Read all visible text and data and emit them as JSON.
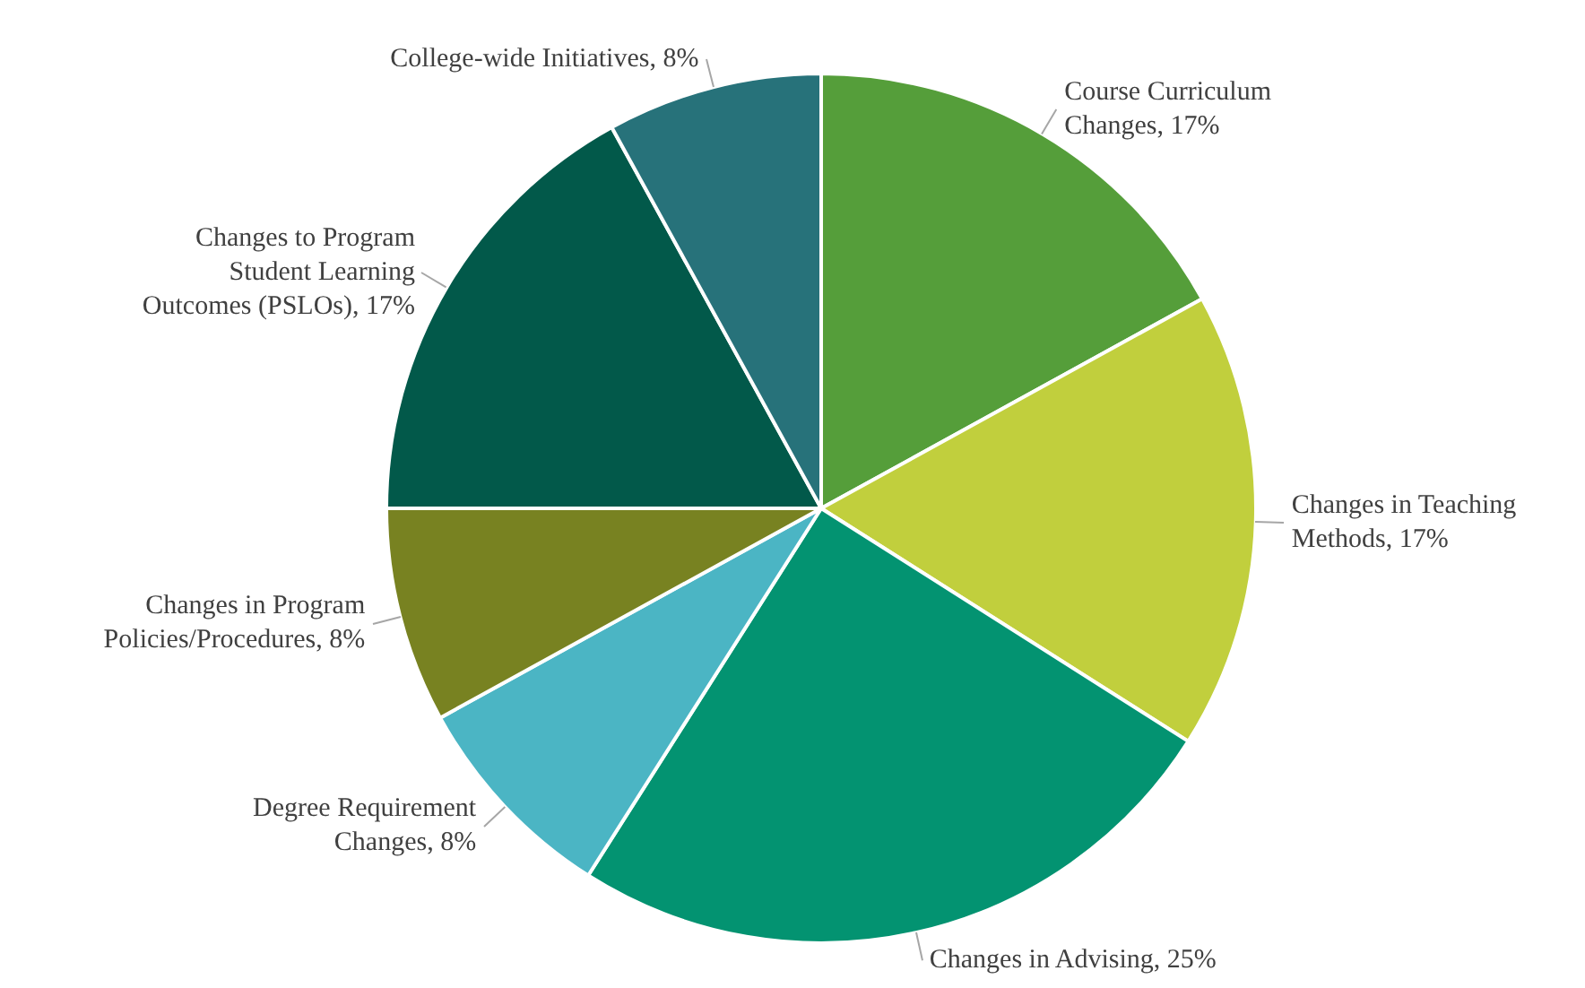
{
  "chart_data": {
    "type": "pie",
    "categories": [
      "Course Curriculum Changes",
      "Changes in Teaching Methods",
      "Changes in Advising",
      "Degree Requirement Changes",
      "Changes in Program Policies/Procedures",
      "Changes to Program Student Learning Outcomes (PSLOs)",
      "College-wide Initiatives"
    ],
    "values": [
      17,
      17,
      25,
      8,
      8,
      17,
      8
    ],
    "value_labels": [
      "17%",
      "17%",
      "25%",
      "8%",
      "8%",
      "17%",
      "8%"
    ],
    "colors": [
      "#559e3a",
      "#c1cf3d",
      "#039371",
      "#4bb5c4",
      "#788221",
      "#02594a",
      "#27727a"
    ]
  }
}
